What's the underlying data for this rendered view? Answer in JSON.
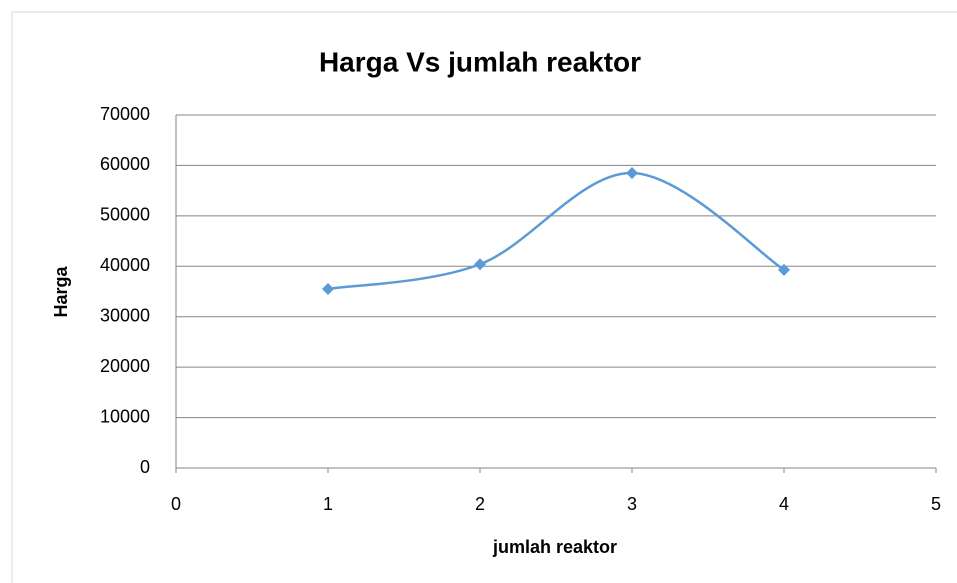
{
  "chart_data": {
    "type": "scatter",
    "title": "Harga Vs jumlah reaktor",
    "x_label": "jumlah reaktor",
    "y_label": "Harga",
    "series": [
      {
        "name": "Harga",
        "color": "#5b9bd5",
        "x": [
          1,
          2,
          3,
          4
        ],
        "values": [
          35500,
          40400,
          58500,
          39300
        ]
      }
    ],
    "xlim": [
      0,
      5
    ],
    "xticks": [
      0,
      1,
      2,
      3,
      4,
      5
    ],
    "ylim": [
      0,
      70000
    ],
    "yticks": [
      0,
      10000,
      20000,
      30000,
      40000,
      50000,
      60000,
      70000
    ],
    "grid": true,
    "smooth": true
  }
}
